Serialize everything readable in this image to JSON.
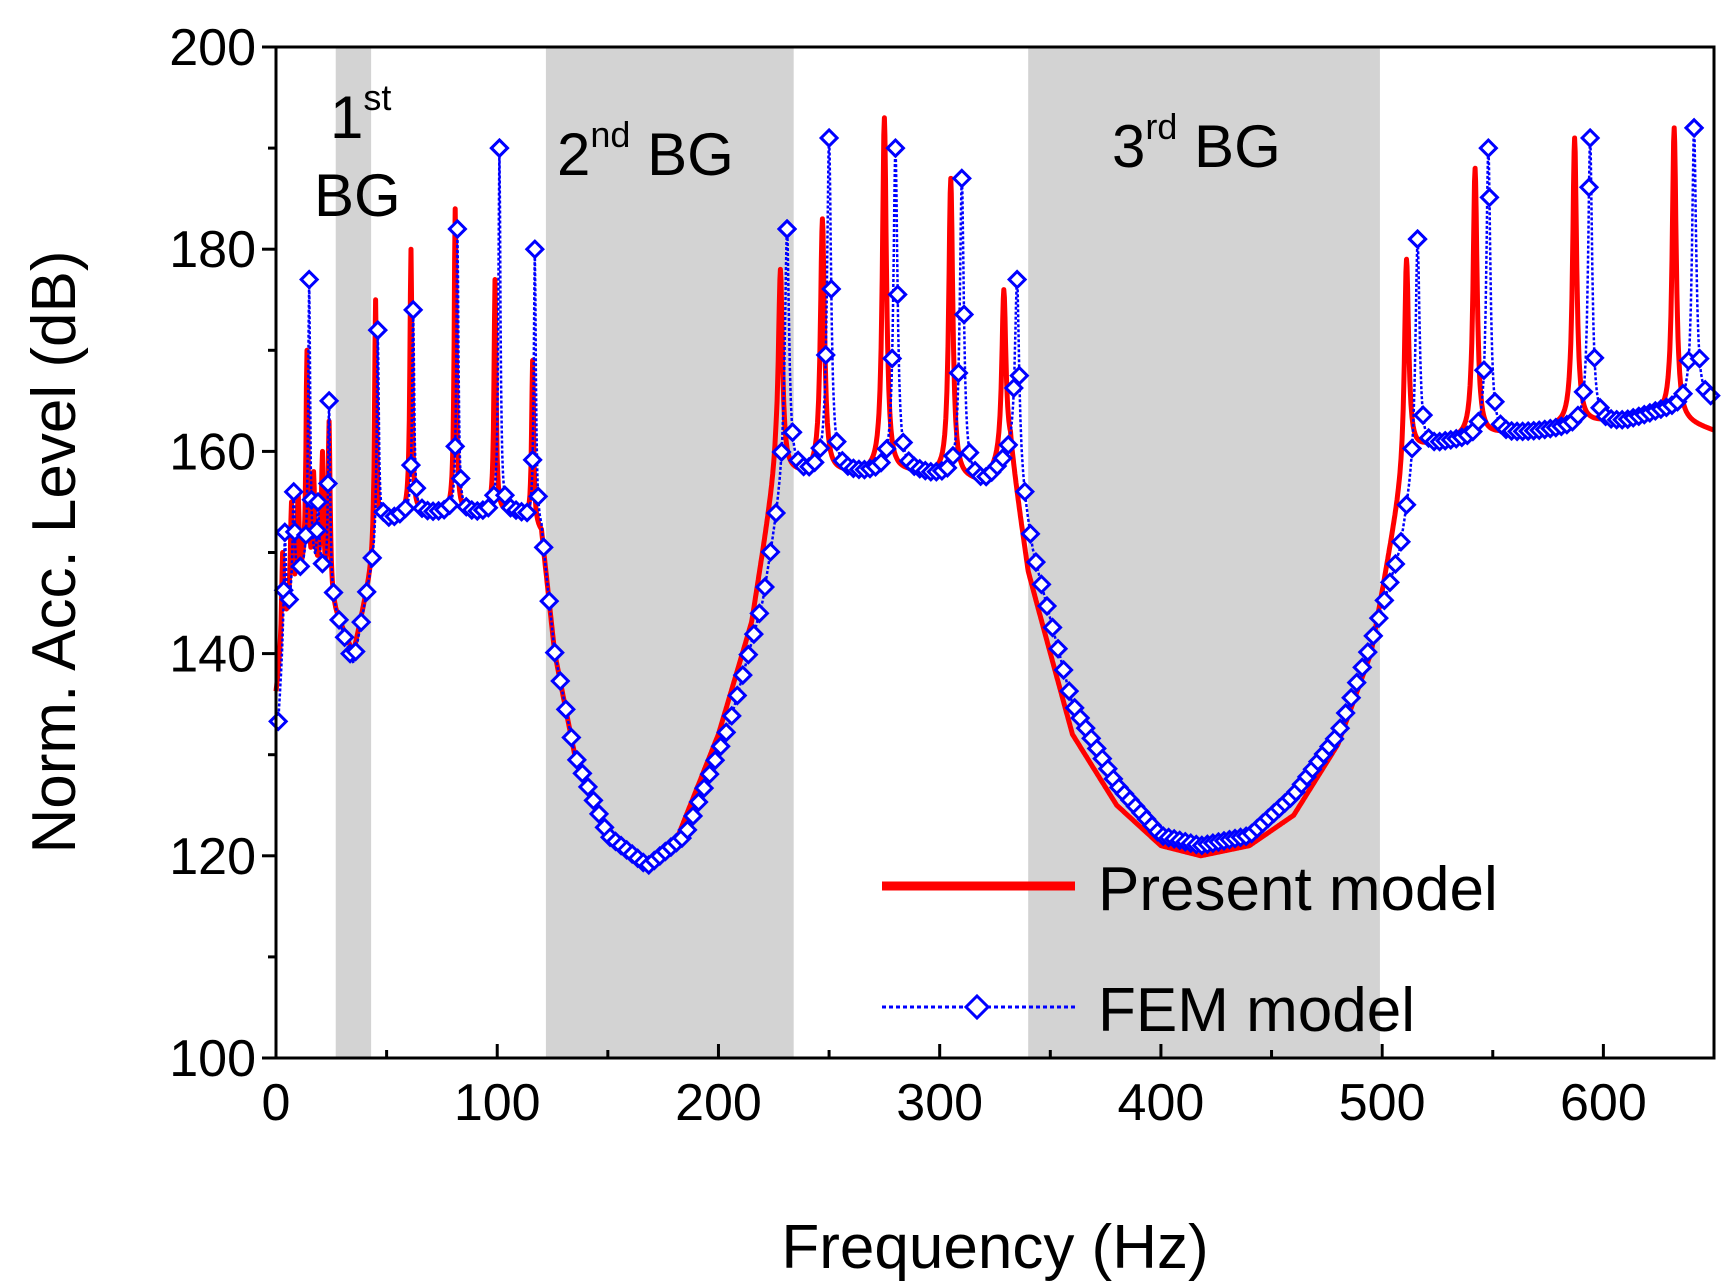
{
  "chart_data": {
    "type": "line",
    "xlabel": "Frequency (Hz)",
    "ylabel": "Norm. Acc. Level (dB)",
    "xlim": [
      0,
      650
    ],
    "ylim": [
      100,
      200
    ],
    "xticks": [
      0,
      100,
      200,
      300,
      400,
      500,
      600
    ],
    "yticks": [
      100,
      120,
      140,
      160,
      180,
      200
    ],
    "grid": false,
    "legend_position": "bottom-right",
    "band_color": "#d3d3d3",
    "bands": [
      {
        "x0": 27,
        "x1": 43,
        "label_base": "1",
        "label_sup": "st",
        "label_rest": "BG"
      },
      {
        "x0": 122,
        "x1": 234,
        "label_base": "2",
        "label_sup": "nd",
        "label_rest": "BG"
      },
      {
        "x0": 340,
        "x1": 499,
        "label_base": "3",
        "label_sup": "rd",
        "label_rest": "BG"
      }
    ],
    "series": [
      {
        "name": "Present model",
        "color": "#ff0000",
        "style": "solid",
        "marker": "none",
        "baseline": [
          [
            0,
            136
          ],
          [
            4,
            143
          ],
          [
            10,
            148
          ],
          [
            20,
            149
          ],
          [
            27,
            144
          ],
          [
            35,
            140
          ],
          [
            42,
            147
          ],
          [
            48,
            153
          ],
          [
            60,
            154
          ],
          [
            75,
            154
          ],
          [
            95,
            154
          ],
          [
            110,
            154
          ],
          [
            120,
            152
          ],
          [
            126,
            140
          ],
          [
            135,
            130
          ],
          [
            150,
            122
          ],
          [
            165,
            119
          ],
          [
            180,
            121
          ],
          [
            200,
            132
          ],
          [
            215,
            143
          ],
          [
            226,
            158
          ],
          [
            240,
            158
          ],
          [
            260,
            158
          ],
          [
            290,
            158
          ],
          [
            320,
            157
          ],
          [
            332,
            160
          ],
          [
            340,
            148
          ],
          [
            360,
            132
          ],
          [
            380,
            125
          ],
          [
            400,
            121
          ],
          [
            418,
            120
          ],
          [
            440,
            121
          ],
          [
            460,
            124
          ],
          [
            480,
            131
          ],
          [
            495,
            140
          ],
          [
            505,
            152
          ],
          [
            512,
            160
          ],
          [
            525,
            161
          ],
          [
            560,
            162
          ],
          [
            600,
            163
          ],
          [
            620,
            164
          ],
          [
            650,
            162
          ]
        ],
        "peaks": [
          [
            3,
            150
          ],
          [
            7,
            155
          ],
          [
            10,
            156
          ],
          [
            14,
            170
          ],
          [
            17,
            158
          ],
          [
            21,
            160
          ],
          [
            24,
            163
          ],
          [
            45,
            175
          ],
          [
            61,
            180
          ],
          [
            81,
            184
          ],
          [
            99,
            177
          ],
          [
            116,
            169
          ],
          [
            228,
            178
          ],
          [
            247,
            183
          ],
          [
            275,
            193
          ],
          [
            305,
            187
          ],
          [
            329,
            176
          ],
          [
            511,
            179
          ],
          [
            542,
            188
          ],
          [
            587,
            191
          ],
          [
            632,
            192
          ]
        ]
      },
      {
        "name": "FEM model",
        "color": "#0000ff",
        "style": "dotted",
        "marker": "diamond",
        "baseline": [
          [
            1,
            133
          ],
          [
            4,
            143
          ],
          [
            10,
            148
          ],
          [
            20,
            149
          ],
          [
            27,
            144
          ],
          [
            35,
            139
          ],
          [
            42,
            147
          ],
          [
            48,
            153
          ],
          [
            60,
            154
          ],
          [
            75,
            154
          ],
          [
            95,
            154
          ],
          [
            110,
            154
          ],
          [
            120,
            152
          ],
          [
            126,
            140
          ],
          [
            135,
            130
          ],
          [
            150,
            122
          ],
          [
            168,
            119
          ],
          [
            185,
            122
          ],
          [
            205,
            133
          ],
          [
            220,
            145
          ],
          [
            230,
            158
          ],
          [
            240,
            158
          ],
          [
            260,
            158
          ],
          [
            290,
            158
          ],
          [
            320,
            157
          ],
          [
            334,
            160
          ],
          [
            342,
            150
          ],
          [
            360,
            135
          ],
          [
            380,
            127
          ],
          [
            400,
            122
          ],
          [
            418,
            121
          ],
          [
            440,
            122
          ],
          [
            460,
            126
          ],
          [
            480,
            132
          ],
          [
            495,
            141
          ],
          [
            508,
            150
          ],
          [
            516,
            160
          ],
          [
            530,
            161
          ],
          [
            570,
            162
          ],
          [
            610,
            163
          ],
          [
            625,
            164
          ],
          [
            650,
            165
          ]
        ],
        "peaks": [
          [
            4,
            152
          ],
          [
            8,
            156
          ],
          [
            15,
            177
          ],
          [
            19,
            155
          ],
          [
            24,
            165
          ],
          [
            46,
            172
          ],
          [
            62,
            174
          ],
          [
            82,
            182
          ],
          [
            101,
            190
          ],
          [
            117,
            180
          ],
          [
            231,
            182
          ],
          [
            250,
            191
          ],
          [
            280,
            190
          ],
          [
            310,
            187
          ],
          [
            335,
            177
          ],
          [
            516,
            181
          ],
          [
            548,
            190
          ],
          [
            594,
            191
          ],
          [
            641,
            192
          ]
        ],
        "marker_step_hz": 2.5
      }
    ]
  }
}
